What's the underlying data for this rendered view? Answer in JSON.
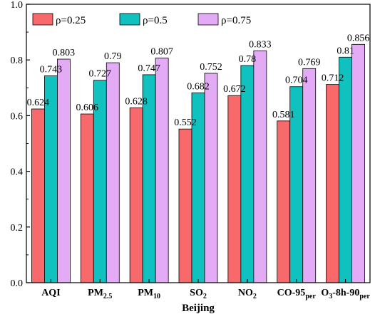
{
  "chart_data": {
    "type": "bar",
    "xlabel": "Beijing",
    "ylabel": "",
    "ylim": [
      0,
      1.0
    ],
    "yticks": [
      "0.0",
      "0.2",
      "0.4",
      "0.6",
      "0.8",
      "1.0"
    ],
    "categories": [
      {
        "base": "AQI",
        "sub": "",
        "suffix": "",
        "sub2": ""
      },
      {
        "base": "PM",
        "sub": "2.5",
        "suffix": "",
        "sub2": ""
      },
      {
        "base": "PM",
        "sub": "10",
        "suffix": "",
        "sub2": ""
      },
      {
        "base": "SO",
        "sub": "2",
        "suffix": "",
        "sub2": ""
      },
      {
        "base": "NO",
        "sub": "2",
        "suffix": "",
        "sub2": ""
      },
      {
        "base": "CO-95",
        "sub": "per",
        "suffix": "",
        "sub2": ""
      },
      {
        "base": "O",
        "sub": "3",
        "suffix": "-8h-90",
        "sub2": "per"
      }
    ],
    "series": [
      {
        "name": "ρ=0.25",
        "color": "#F8696B",
        "values": [
          0.624,
          0.606,
          0.628,
          0.552,
          0.672,
          0.581,
          0.712
        ],
        "labels": [
          "0.624",
          "0.606",
          "0.628",
          "0.552",
          "0.672",
          "0.581",
          "0.712"
        ]
      },
      {
        "name": "ρ=0.5",
        "color": "#0FC2C0",
        "values": [
          0.743,
          0.727,
          0.747,
          0.682,
          0.78,
          0.704,
          0.81
        ],
        "labels": [
          "0.743",
          "0.727",
          "0.747",
          "0.682",
          "0.78",
          "0.704",
          "0.81"
        ]
      },
      {
        "name": "ρ=0.75",
        "color": "#E3AAF5",
        "values": [
          0.803,
          0.79,
          0.807,
          0.752,
          0.833,
          0.769,
          0.856
        ],
        "labels": [
          "0.803",
          "0.79",
          "0.807",
          "0.752",
          "0.833",
          "0.769",
          "0.856"
        ]
      }
    ],
    "legend": "top-left",
    "grid": false
  }
}
